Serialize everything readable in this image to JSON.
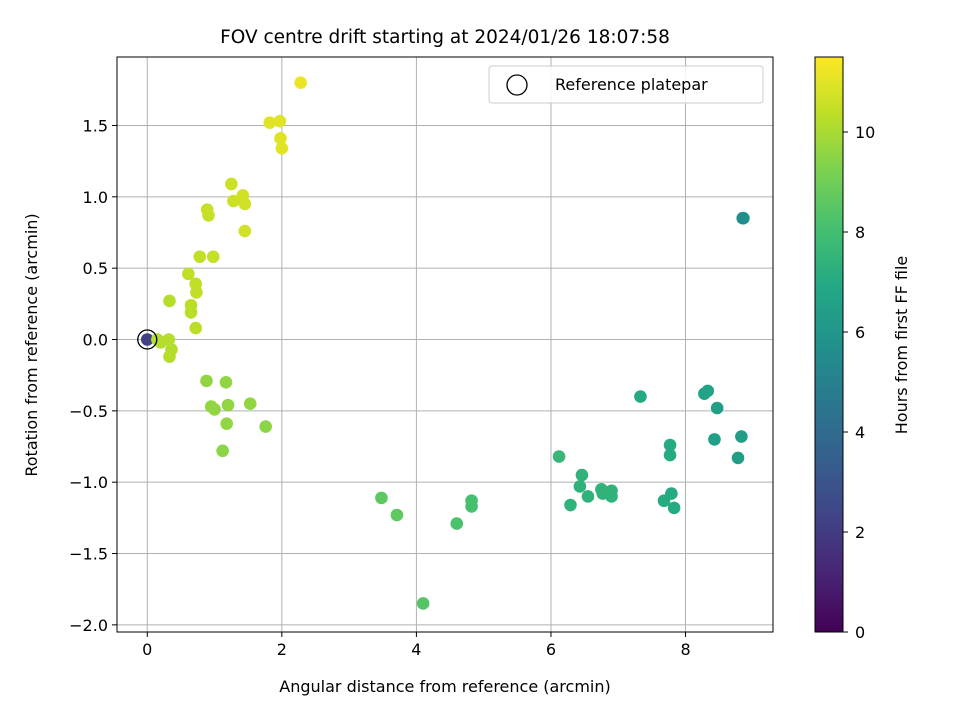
{
  "chart_data": {
    "type": "scatter",
    "title": "FOV centre drift starting at 2024/01/26 18:07:58",
    "xlabel": "Angular distance from reference (arcmin)",
    "ylabel": "Rotation from reference (arcmin)",
    "xlim": [
      -0.45,
      9.3
    ],
    "ylim": [
      -2.05,
      1.98
    ],
    "x_ticks": [
      0,
      2,
      4,
      6,
      8
    ],
    "y_ticks": [
      -2.0,
      -1.5,
      -1.0,
      -0.5,
      0.0,
      0.5,
      1.0,
      1.5
    ],
    "x_tick_labels": [
      "0",
      "2",
      "4",
      "6",
      "8"
    ],
    "y_tick_labels": [
      "−2.0",
      "−1.5",
      "−1.0",
      "−0.5",
      "0.0",
      "0.5",
      "1.0",
      "1.5"
    ],
    "grid": true,
    "legend": {
      "placement": "top-right",
      "entries": [
        "Reference platepar"
      ]
    },
    "colorbar": {
      "label": "Hours from first FF file",
      "range": [
        0,
        11.5
      ],
      "ticks": [
        0,
        2,
        4,
        6,
        8,
        10
      ],
      "tick_labels": [
        "0",
        "2",
        "4",
        "6",
        "8",
        "10"
      ],
      "colormap": "viridis"
    },
    "reference_point": {
      "x": 0,
      "y": 0
    },
    "points": [
      {
        "x": 0.0,
        "y": 0.0,
        "h": 2.2
      },
      {
        "x": 0.15,
        "y": 0.0,
        "h": 10.2
      },
      {
        "x": 0.2,
        "y": -0.02,
        "h": 10.2
      },
      {
        "x": 0.32,
        "y": 0.0,
        "h": 10.2
      },
      {
        "x": 0.33,
        "y": -0.12,
        "h": 10.2
      },
      {
        "x": 0.36,
        "y": -0.07,
        "h": 10.2
      },
      {
        "x": 0.33,
        "y": 0.27,
        "h": 10.2
      },
      {
        "x": 0.61,
        "y": 0.46,
        "h": 10.4
      },
      {
        "x": 0.65,
        "y": 0.24,
        "h": 10.3
      },
      {
        "x": 0.65,
        "y": 0.19,
        "h": 10.3
      },
      {
        "x": 0.72,
        "y": 0.39,
        "h": 10.4
      },
      {
        "x": 0.73,
        "y": 0.33,
        "h": 10.4
      },
      {
        "x": 0.72,
        "y": 0.08,
        "h": 10.3
      },
      {
        "x": 0.78,
        "y": 0.58,
        "h": 10.4
      },
      {
        "x": 0.98,
        "y": 0.58,
        "h": 10.5
      },
      {
        "x": 0.89,
        "y": 0.91,
        "h": 10.5
      },
      {
        "x": 0.91,
        "y": 0.87,
        "h": 10.5
      },
      {
        "x": 1.25,
        "y": 1.09,
        "h": 10.6
      },
      {
        "x": 1.28,
        "y": 0.97,
        "h": 10.6
      },
      {
        "x": 1.42,
        "y": 1.01,
        "h": 10.7
      },
      {
        "x": 1.45,
        "y": 0.95,
        "h": 10.7
      },
      {
        "x": 1.45,
        "y": 0.76,
        "h": 10.7
      },
      {
        "x": 1.82,
        "y": 1.52,
        "h": 11.0
      },
      {
        "x": 1.97,
        "y": 1.53,
        "h": 11.0
      },
      {
        "x": 1.98,
        "y": 1.41,
        "h": 11.0
      },
      {
        "x": 2.0,
        "y": 1.34,
        "h": 11.0
      },
      {
        "x": 2.28,
        "y": 1.8,
        "h": 11.2
      },
      {
        "x": 0.88,
        "y": -0.29,
        "h": 9.6
      },
      {
        "x": 0.95,
        "y": -0.47,
        "h": 9.6
      },
      {
        "x": 1.0,
        "y": -0.49,
        "h": 9.6
      },
      {
        "x": 1.17,
        "y": -0.3,
        "h": 9.6
      },
      {
        "x": 1.2,
        "y": -0.46,
        "h": 9.6
      },
      {
        "x": 1.18,
        "y": -0.59,
        "h": 9.6
      },
      {
        "x": 1.12,
        "y": -0.78,
        "h": 9.5
      },
      {
        "x": 1.53,
        "y": -0.45,
        "h": 9.6
      },
      {
        "x": 1.76,
        "y": -0.61,
        "h": 9.5
      },
      {
        "x": 3.48,
        "y": -1.11,
        "h": 8.6
      },
      {
        "x": 3.71,
        "y": -1.23,
        "h": 8.6
      },
      {
        "x": 4.1,
        "y": -1.85,
        "h": 8.4
      },
      {
        "x": 4.6,
        "y": -1.29,
        "h": 8.2
      },
      {
        "x": 4.82,
        "y": -1.13,
        "h": 8.1
      },
      {
        "x": 4.82,
        "y": -1.17,
        "h": 8.1
      },
      {
        "x": 6.12,
        "y": -0.82,
        "h": 7.6
      },
      {
        "x": 6.29,
        "y": -1.16,
        "h": 7.4
      },
      {
        "x": 6.43,
        "y": -1.03,
        "h": 7.4
      },
      {
        "x": 6.46,
        "y": -0.95,
        "h": 7.4
      },
      {
        "x": 6.55,
        "y": -1.1,
        "h": 7.4
      },
      {
        "x": 6.75,
        "y": -1.05,
        "h": 7.4
      },
      {
        "x": 6.77,
        "y": -1.08,
        "h": 7.4
      },
      {
        "x": 6.9,
        "y": -1.06,
        "h": 7.4
      },
      {
        "x": 6.9,
        "y": -1.1,
        "h": 7.4
      },
      {
        "x": 7.33,
        "y": -0.4,
        "h": 7.0
      },
      {
        "x": 7.68,
        "y": -1.13,
        "h": 7.0
      },
      {
        "x": 7.77,
        "y": -0.74,
        "h": 7.0
      },
      {
        "x": 7.77,
        "y": -0.81,
        "h": 7.0
      },
      {
        "x": 7.79,
        "y": -1.08,
        "h": 7.0
      },
      {
        "x": 7.83,
        "y": -1.18,
        "h": 7.0
      },
      {
        "x": 8.28,
        "y": -0.38,
        "h": 6.6
      },
      {
        "x": 8.33,
        "y": -0.36,
        "h": 6.6
      },
      {
        "x": 8.43,
        "y": -0.7,
        "h": 6.5
      },
      {
        "x": 8.47,
        "y": -0.48,
        "h": 6.5
      },
      {
        "x": 8.78,
        "y": -0.83,
        "h": 6.4
      },
      {
        "x": 8.83,
        "y": -0.68,
        "h": 6.4
      },
      {
        "x": 8.85,
        "y": 0.85,
        "h": 5.6
      },
      {
        "x": 8.86,
        "y": 0.85,
        "h": 5.6
      }
    ]
  }
}
